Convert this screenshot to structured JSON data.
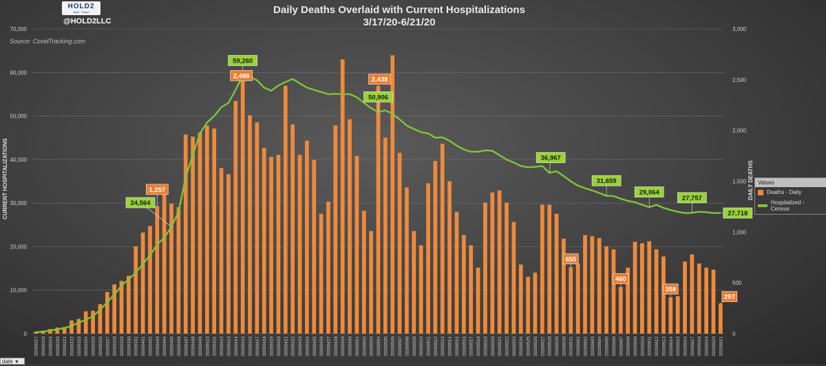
{
  "header": {
    "title_line1": "Daily Deaths Overlaid with Current Hospitalizations",
    "title_line2": "3/17/20-6/21/20",
    "handle": "@HOLD2LLC",
    "logo_text": "HOLD2",
    "logo_sub": "Build · Share",
    "source": "Source: CovidTracking.com"
  },
  "legend": {
    "title": "Values",
    "deaths_label": "Deaths - Daily",
    "hosp_label": "Hospitalized - Census"
  },
  "filter": {
    "label": "date"
  },
  "colors": {
    "bar": "#ef8a3c",
    "line": "#7ec832",
    "callout_green": "#9ad23a",
    "callout_orange": "#ed7d31"
  },
  "chart_data": {
    "type": "bar+line",
    "title": "Daily Deaths Overlaid with Current Hospitalizations 3/17/20-6/21/20",
    "ylabel_left": "CURRENT HOSPITALIZATIONS",
    "ylabel_right": "DAILY DEATHS",
    "ylim_left": [
      0,
      70000
    ],
    "ylim_right": [
      0,
      3000
    ],
    "left_ticks": [
      "0",
      "10,000",
      "20,000",
      "30,000",
      "40,000",
      "50,000",
      "60,000",
      "70,000"
    ],
    "right_ticks": [
      "0",
      "500",
      "1,000",
      "1,500",
      "2,000",
      "2,500",
      "3,000"
    ],
    "dates": [
      "20200317",
      "20200318",
      "20200319",
      "20200320",
      "20200321",
      "20200322",
      "20200323",
      "20200324",
      "20200325",
      "20200326",
      "20200327",
      "20200328",
      "20200329",
      "20200330",
      "20200331",
      "20200401",
      "20200402",
      "20200403",
      "20200404",
      "20200405",
      "20200406",
      "20200407",
      "20200408",
      "20200409",
      "20200410",
      "20200411",
      "20200412",
      "20200413",
      "20200414",
      "20200415",
      "20200416",
      "20200417",
      "20200418",
      "20200419",
      "20200420",
      "20200421",
      "20200422",
      "20200423",
      "20200424",
      "20200425",
      "20200426",
      "20200427",
      "20200428",
      "20200429",
      "20200430",
      "20200501",
      "20200502",
      "20200503",
      "20200504",
      "20200505",
      "20200506",
      "20200507",
      "20200508",
      "20200509",
      "20200510",
      "20200511",
      "20200512",
      "20200513",
      "20200514",
      "20200515",
      "20200516",
      "20200517",
      "20200518",
      "20200519",
      "20200520",
      "20200521",
      "20200522",
      "20200523",
      "20200524",
      "20200525",
      "20200526",
      "20200527",
      "20200528",
      "20200529",
      "20200530",
      "20200531",
      "20200601",
      "20200602",
      "20200603",
      "20200604",
      "20200605",
      "20200606",
      "20200607",
      "20200608",
      "20200609",
      "20200610",
      "20200611",
      "20200612",
      "20200613",
      "20200614",
      "20200615",
      "20200616",
      "20200617",
      "20200618",
      "20200619",
      "20200620",
      "20200621"
    ],
    "series": [
      {
        "name": "Deaths - Daily",
        "axis": "right",
        "type": "bar",
        "values": [
          20,
          25,
          45,
          60,
          65,
          130,
          145,
          220,
          225,
          290,
          410,
          485,
          520,
          570,
          860,
          995,
          1060,
          1257,
          1430,
          1280,
          1245,
          1960,
          1940,
          1980,
          2050,
          2020,
          1630,
          1570,
          2290,
          2486,
          2150,
          2080,
          1830,
          1740,
          1760,
          2440,
          2060,
          1760,
          1900,
          1710,
          1180,
          1300,
          2050,
          2700,
          2110,
          1750,
          1210,
          1010,
          2438,
          1930,
          2740,
          1780,
          1440,
          1010,
          870,
          1480,
          1700,
          1870,
          1500,
          1200,
          970,
          870,
          650,
          1290,
          1390,
          1410,
          1290,
          1100,
          680,
          560,
          600,
          1270,
          1270,
          1180,
          935,
          655,
          690,
          970,
          960,
          940,
          860,
          830,
          460,
          650,
          905,
          890,
          910,
          830,
          760,
          358,
          370,
          710,
          780,
          690,
          650,
          630,
          297
        ]
      },
      {
        "name": "Hospitalized - Census",
        "axis": "left",
        "type": "line",
        "values": [
          300,
          500,
          700,
          1000,
          1300,
          1800,
          2500,
          3200,
          4000,
          5500,
          7200,
          9000,
          11000,
          12500,
          14000,
          16000,
          18000,
          20500,
          22000,
          24564,
          28000,
          36000,
          41000,
          46000,
          48500,
          50000,
          52000,
          53000,
          56000,
          59260,
          59000,
          58200,
          56500,
          55800,
          57000,
          57800,
          58500,
          57500,
          56500,
          56000,
          55500,
          55000,
          55100,
          55000,
          55000,
          54300,
          53000,
          51800,
          50906,
          51300,
          50500,
          49200,
          47800,
          47000,
          46300,
          46000,
          45000,
          45100,
          44300,
          43200,
          42300,
          41800,
          41800,
          42100,
          42000,
          41000,
          40000,
          39300,
          38500,
          38200,
          38300,
          38500,
          36967,
          37300,
          36200,
          35000,
          34000,
          33400,
          32900,
          32300,
          31659,
          31600,
          31000,
          30500,
          30200,
          29600,
          29064,
          29600,
          28900,
          28400,
          28000,
          27700,
          27757,
          28000,
          27900,
          27700,
          27718
        ]
      }
    ],
    "callouts": [
      {
        "series": "Hospitalized - Census",
        "index": 19,
        "label": "24,564"
      },
      {
        "series": "Hospitalized - Census",
        "index": 29,
        "label": "59,260"
      },
      {
        "series": "Hospitalized - Census",
        "index": 48,
        "label": "50,906"
      },
      {
        "series": "Hospitalized - Census",
        "index": 72,
        "label": "36,967"
      },
      {
        "series": "Hospitalized - Census",
        "index": 80,
        "label": "31,659"
      },
      {
        "series": "Hospitalized - Census",
        "index": 86,
        "label": "29,064"
      },
      {
        "series": "Hospitalized - Census",
        "index": 92,
        "label": "27,757"
      },
      {
        "series": "Hospitalized - Census",
        "index": 96,
        "label": "27,718"
      },
      {
        "series": "Deaths - Daily",
        "index": 17,
        "label": "1,257"
      },
      {
        "series": "Deaths - Daily",
        "index": 29,
        "label": "2,486"
      },
      {
        "series": "Deaths - Daily",
        "index": 48,
        "label": "2,438"
      },
      {
        "series": "Deaths - Daily",
        "index": 75,
        "label": "655"
      },
      {
        "series": "Deaths - Daily",
        "index": 82,
        "label": "460"
      },
      {
        "series": "Deaths - Daily",
        "index": 89,
        "label": "358"
      },
      {
        "series": "Deaths - Daily",
        "index": 96,
        "label": "297"
      }
    ]
  }
}
